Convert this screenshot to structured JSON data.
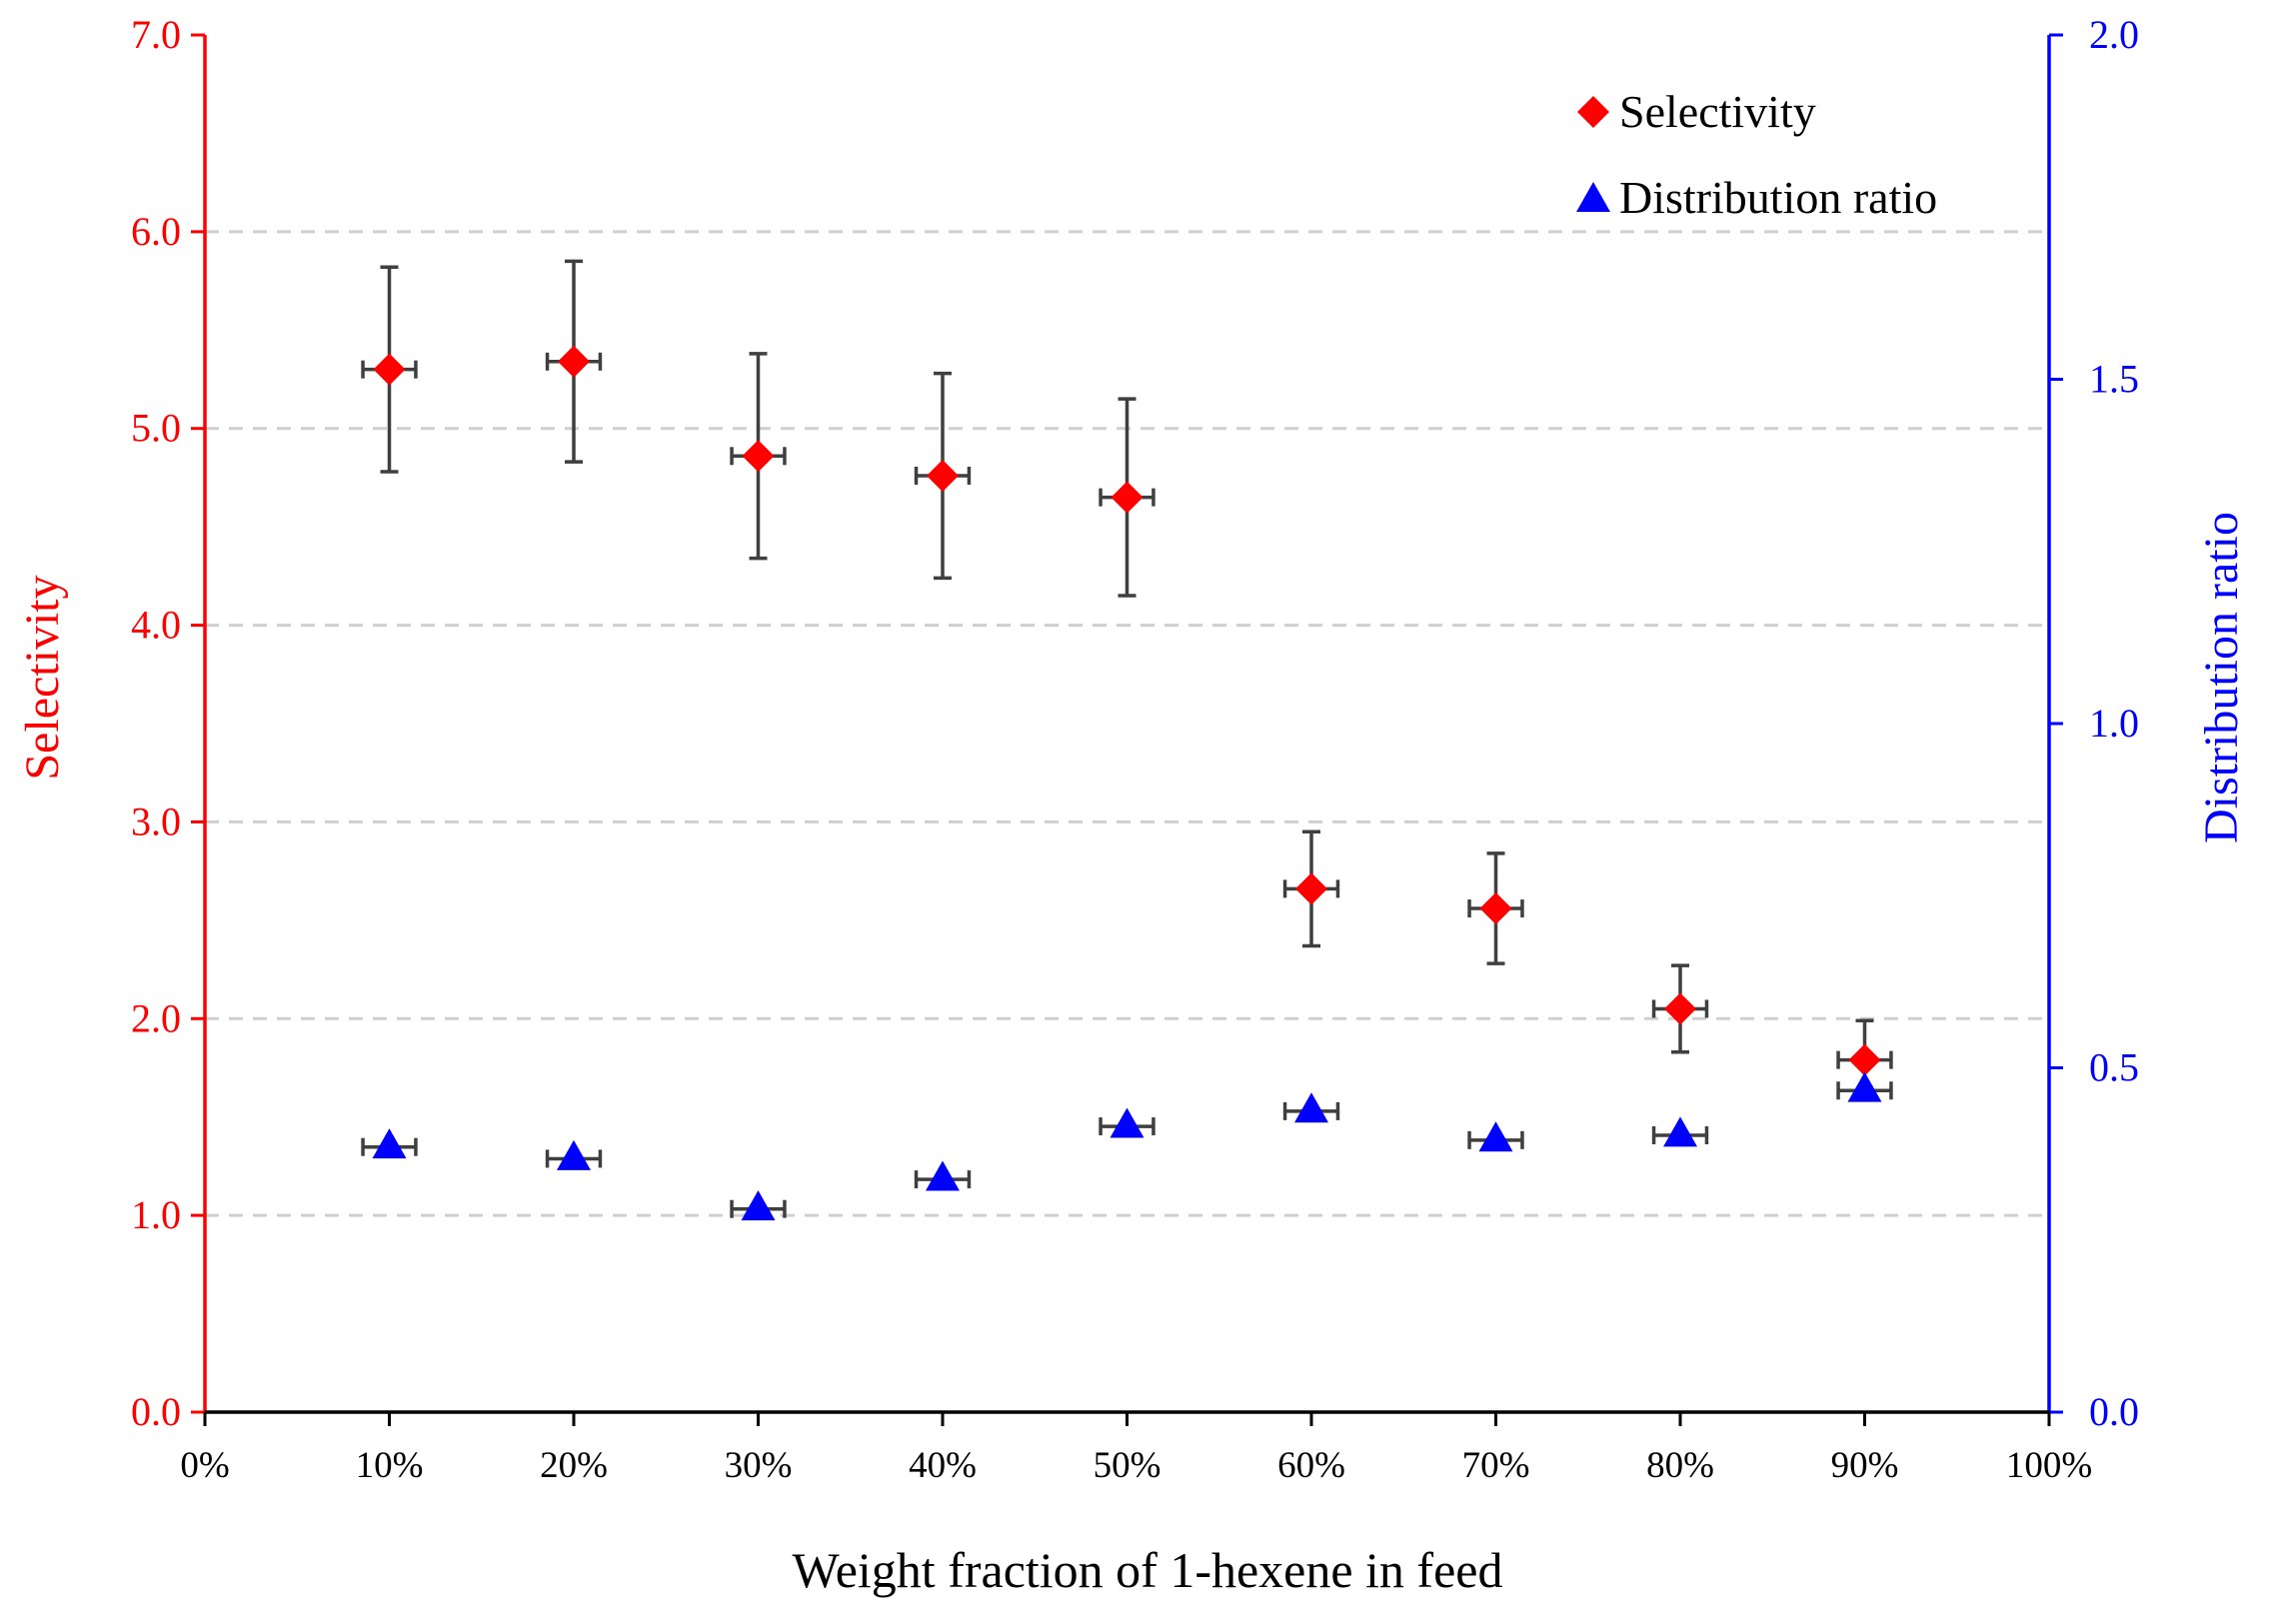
{
  "chart_data": {
    "type": "scatter",
    "xlabel": "Weight fraction of 1-hexene in feed",
    "ylabel_left": "Selectivity",
    "ylabel_right": "Distribution ratio",
    "x_ticks": [
      "0%",
      "10%",
      "20%",
      "30%",
      "40%",
      "50%",
      "60%",
      "70%",
      "80%",
      "90%",
      "100%"
    ],
    "y_left_ticks": [
      "0.0",
      "1.0",
      "2.0",
      "3.0",
      "4.0",
      "5.0",
      "6.0",
      "7.0"
    ],
    "y_right_ticks": [
      "0.0",
      "0.5",
      "1.0",
      "1.5",
      "2.0"
    ],
    "xlim": [
      0,
      100
    ],
    "ylim_left": [
      0,
      7
    ],
    "ylim_right": [
      0,
      2
    ],
    "grid": "horizontal dashed at left-axis major ticks",
    "legend_position": "top-right",
    "colors": {
      "left_axis": "#ff0000",
      "right_axis": "#0000ff",
      "error_bars": "#3f3f3f"
    },
    "series": [
      {
        "name": "Selectivity",
        "axis": "left",
        "marker": "diamond",
        "color": "#ff0000",
        "x": [
          10,
          20,
          30,
          40,
          50,
          60,
          70,
          80,
          90
        ],
        "y": [
          5.3,
          5.34,
          4.86,
          4.76,
          4.65,
          2.66,
          2.56,
          2.05,
          1.79
        ],
        "y_err": [
          0.52,
          0.51,
          0.52,
          0.52,
          0.5,
          0.29,
          0.28,
          0.22,
          0.2
        ],
        "x_err": [
          1.0,
          1.0,
          1.0,
          1.0,
          1.0,
          1.0,
          1.0,
          1.0,
          1.0
        ]
      },
      {
        "name": "Distribution ratio",
        "axis": "right",
        "marker": "triangle",
        "color": "#0000ff",
        "x": [
          10,
          20,
          30,
          40,
          50,
          60,
          70,
          80,
          90
        ],
        "y": [
          0.385,
          0.368,
          0.295,
          0.338,
          0.415,
          0.437,
          0.395,
          0.402,
          0.467
        ],
        "y_err": [
          0,
          0,
          0,
          0,
          0,
          0,
          0,
          0,
          0
        ],
        "x_err": [
          1.0,
          1.0,
          1.0,
          1.0,
          1.0,
          1.0,
          1.0,
          1.0,
          1.0
        ]
      }
    ]
  }
}
